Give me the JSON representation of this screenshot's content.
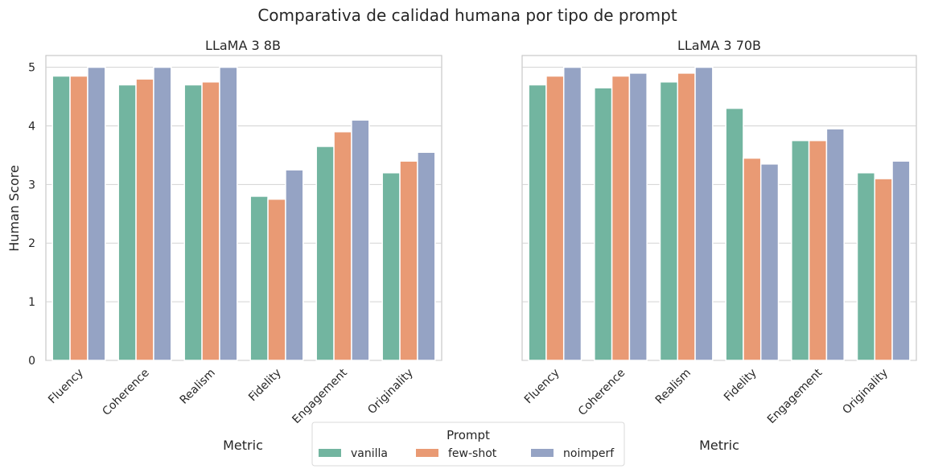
{
  "title": "Comparativa de calidad humana por tipo de prompt",
  "legend": {
    "title": "Prompt",
    "placement": "bottom-center",
    "entries": [
      "vanilla",
      "few-shot",
      "noimperf"
    ]
  },
  "colors": {
    "vanilla": "#72b5a0",
    "few-shot": "#e99a74",
    "noimperf": "#95a3c4",
    "grid": "#d3d3d3",
    "frame": "#c8c8c8"
  },
  "chart_data": [
    {
      "type": "bar",
      "title": "LLaMA 3 8B",
      "xlabel": "Metric",
      "ylabel": "Human Score",
      "ylim": [
        0,
        5.2
      ],
      "yticks": [
        "0",
        "1",
        "2",
        "3",
        "4",
        "5"
      ],
      "grid": true,
      "categories": [
        "Fluency",
        "Coherence",
        "Realism",
        "Fidelity",
        "Engagement",
        "Originality"
      ],
      "series": [
        {
          "name": "vanilla",
          "values": [
            4.85,
            4.7,
            4.7,
            2.8,
            3.65,
            3.2
          ]
        },
        {
          "name": "few-shot",
          "values": [
            4.85,
            4.8,
            4.75,
            2.75,
            3.9,
            3.4
          ]
        },
        {
          "name": "noimperf",
          "values": [
            5.0,
            5.0,
            5.0,
            3.25,
            4.1,
            3.55
          ]
        }
      ]
    },
    {
      "type": "bar",
      "title": "LLaMA 3 70B",
      "xlabel": "Metric",
      "ylabel": "",
      "ylim": [
        0,
        5.2
      ],
      "grid": true,
      "categories": [
        "Fluency",
        "Coherence",
        "Realism",
        "Fidelity",
        "Engagement",
        "Originality"
      ],
      "series": [
        {
          "name": "vanilla",
          "values": [
            4.7,
            4.65,
            4.75,
            4.3,
            3.75,
            3.2
          ]
        },
        {
          "name": "few-shot",
          "values": [
            4.85,
            4.85,
            4.9,
            3.45,
            3.75,
            3.1
          ]
        },
        {
          "name": "noimperf",
          "values": [
            5.0,
            4.9,
            5.0,
            3.35,
            3.95,
            3.4
          ]
        }
      ]
    }
  ]
}
